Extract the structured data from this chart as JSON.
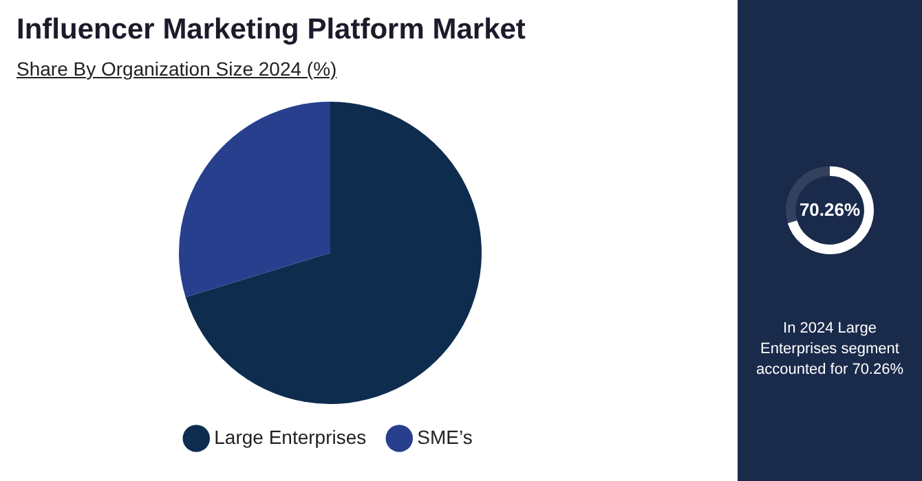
{
  "chart_data": [
    {
      "type": "pie",
      "title": "Influencer Marketing Platform Market",
      "subtitle": "Share By Organization Size 2024 (%)",
      "categories": [
        "Large Enterprises",
        "SME’s"
      ],
      "values": [
        70.26,
        29.74
      ],
      "colors": [
        "#0e2c4e",
        "#283f8e"
      ],
      "legend": "bottom"
    },
    {
      "type": "donut",
      "categories": [
        null,
        null
      ],
      "values": [
        70.26,
        29.74
      ],
      "colors": [
        "#ffffff",
        "#33415e"
      ],
      "annotations": [
        "70.26%",
        "In 2024 Large Enterprises segment accounted for 70.26%"
      ]
    }
  ]
}
